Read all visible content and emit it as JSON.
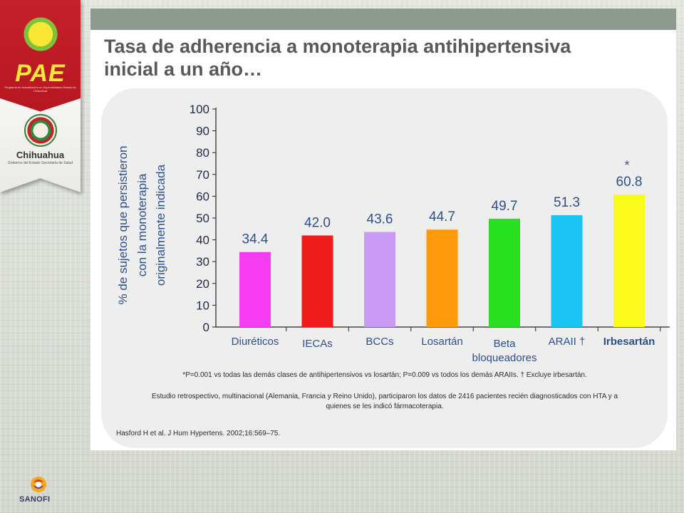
{
  "branding": {
    "pae_logo_text": "PAE",
    "pae_logo_subtext": "Programa de Actualización en Especialidades Estado de Chihuahua",
    "chihuahua_text": "Chihuahua",
    "chihuahua_subtext": "Gobierno del Estado Secretaría de Salud",
    "sanofi_text": "SANOFI"
  },
  "slide": {
    "title": "Tasa de adherencia a monoterapia antihipertensiva\ninicial a un año…"
  },
  "chart_data": {
    "type": "bar",
    "ylabel_lines": [
      "% de sujetos que persistieron",
      "con la monoterapia",
      "originalmente indicada"
    ],
    "ylim": [
      0,
      100
    ],
    "yticks": [
      "0",
      "10",
      "20",
      "30",
      "40",
      "50",
      "60",
      "70",
      "80",
      "90",
      "100"
    ],
    "categories": [
      {
        "lines": [
          "Diuréticos"
        ],
        "bold": false
      },
      {
        "lines": [
          "IECAs"
        ],
        "bold": false
      },
      {
        "lines": [
          "BCCs"
        ],
        "bold": false
      },
      {
        "lines": [
          "Losartán"
        ],
        "bold": false
      },
      {
        "lines": [
          "Beta",
          "bloqueadores"
        ],
        "bold": false
      },
      {
        "lines": [
          "ARAII †"
        ],
        "bold": false
      },
      {
        "lines": [
          "Irbesartán"
        ],
        "bold": true
      }
    ],
    "values": [
      34.4,
      42.0,
      43.6,
      44.7,
      49.7,
      51.3,
      60.8
    ],
    "value_labels": [
      "34.4",
      "42.0",
      "43.6",
      "44.7",
      "49.7",
      "51.3",
      "60.8"
    ],
    "colors": [
      "#f53cf2",
      "#ef1c1c",
      "#c99af4",
      "#ff9a0a",
      "#28e020",
      "#19c4f5",
      "#fbfb1b"
    ],
    "annotation": "*",
    "grid": false,
    "legend": "none"
  },
  "notes": {
    "footnote": "*P=0.001 vs todas las demás clases de antihipertensivos vs losartán; P=0.009 vs todos los demás ARAIIs. † Excluye irbesartán.",
    "study_line1": "Estudio retrospectivo, multinacional (Alemania, Francia y Reino Unido), participaron los datos de 2416 pacientes recién diagnosticados con HTA y a",
    "study_line2": "quienes se les indicó fármacoterapia.",
    "reference": "Hasford H et al. J Hum Hypertens. 2002;16:569–75."
  }
}
